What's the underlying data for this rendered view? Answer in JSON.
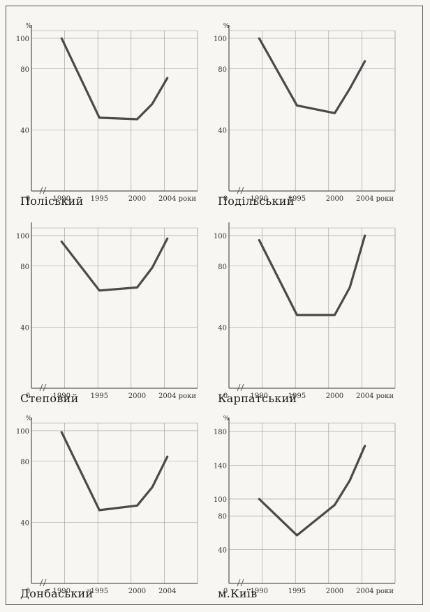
{
  "chart_data": [
    {
      "type": "line",
      "title": "Поліський",
      "unit_label": "%",
      "x_unit_label": "роки",
      "origin_label": "0",
      "x_ticks": [
        "1990",
        "1995",
        "2000",
        "2004"
      ],
      "y_ticks": [
        "40",
        "80",
        "100"
      ],
      "x": [
        1990,
        1995,
        2000,
        2002,
        2004
      ],
      "values": [
        100,
        48,
        47,
        57,
        74
      ],
      "ylim": [
        0,
        105
      ]
    },
    {
      "type": "line",
      "title": "Подільський",
      "unit_label": "%",
      "x_unit_label": "роки",
      "origin_label": "0",
      "x_ticks": [
        "1990",
        "1995",
        "2000",
        "2004"
      ],
      "y_ticks": [
        "40",
        "80",
        "100"
      ],
      "x": [
        1990,
        1995,
        2000,
        2002,
        2004
      ],
      "values": [
        100,
        56,
        51,
        67,
        85
      ],
      "ylim": [
        0,
        105
      ]
    },
    {
      "type": "line",
      "title": "Степовий",
      "unit_label": "",
      "x_unit_label": "роки",
      "origin_label": "0",
      "x_ticks": [
        "1990",
        "1995",
        "2000",
        "2004"
      ],
      "y_ticks": [
        "40",
        "80",
        "100"
      ],
      "x": [
        1990,
        1995,
        2000,
        2002,
        2004
      ],
      "values": [
        96,
        64,
        66,
        79,
        98
      ],
      "ylim": [
        0,
        105
      ]
    },
    {
      "type": "line",
      "title": "Карпатський",
      "unit_label": "",
      "x_unit_label": "роки",
      "origin_label": "0",
      "x_ticks": [
        "1990",
        "1995",
        "2000",
        "2004"
      ],
      "y_ticks": [
        "40",
        "80",
        "100"
      ],
      "x": [
        1990,
        1995,
        2000,
        2002,
        2004
      ],
      "values": [
        97,
        48,
        48,
        66,
        100
      ],
      "ylim": [
        0,
        105
      ]
    },
    {
      "type": "line",
      "title": "Донбаський",
      "unit_label": "%",
      "x_unit_label": "",
      "origin_label": "0",
      "x_ticks": [
        "1990",
        "1995",
        "2000",
        "2004"
      ],
      "y_ticks": [
        "40",
        "80",
        "100"
      ],
      "x": [
        1990,
        1995,
        2000,
        2002,
        2004
      ],
      "values": [
        99,
        48,
        51,
        63,
        83
      ],
      "ylim": [
        0,
        105
      ]
    },
    {
      "type": "line",
      "title": "м.Київ",
      "unit_label": "%",
      "x_unit_label": "роки",
      "origin_label": "0",
      "x_ticks": [
        "1990",
        "1995",
        "2000",
        "2004"
      ],
      "y_ticks": [
        "40",
        "80",
        "100",
        "140",
        "180"
      ],
      "x": [
        1990,
        1995,
        2000,
        2002,
        2004
      ],
      "values": [
        100,
        57,
        93,
        122,
        163
      ],
      "ylim": [
        0,
        190
      ]
    }
  ]
}
